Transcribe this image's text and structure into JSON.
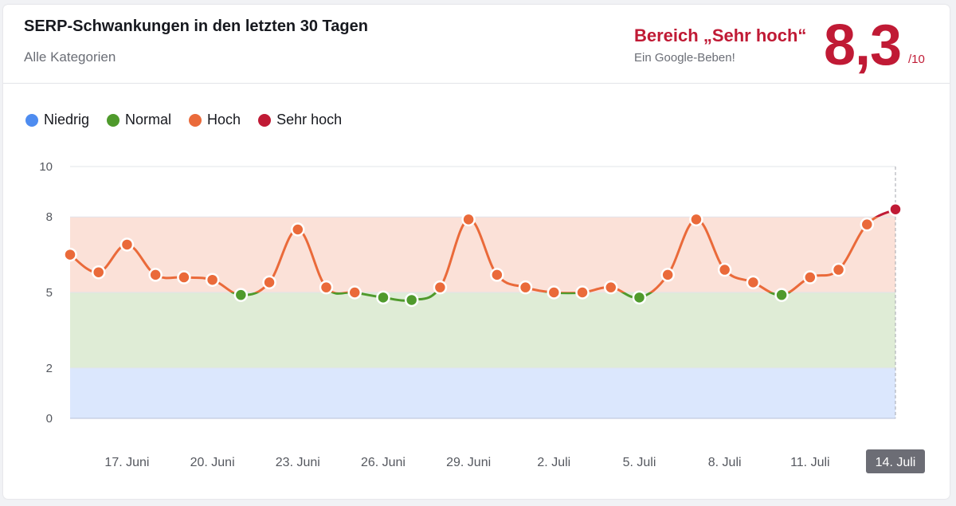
{
  "header": {
    "title": "SERP-Schwankungen in den letzten 30 Tagen",
    "subtitle": "Alle Kategorien",
    "range_label": "Bereich „Sehr hoch“",
    "range_sub": "Ein Google-Beben!",
    "score": "8,3",
    "score_max": "/10"
  },
  "legend": [
    {
      "label": "Niedrig",
      "color": "#4e8cf0"
    },
    {
      "label": "Normal",
      "color": "#4f9a2c"
    },
    {
      "label": "Hoch",
      "color": "#ea6a3a"
    },
    {
      "label": "Sehr hoch",
      "color": "#c01a35"
    }
  ],
  "chart_data": {
    "type": "line",
    "ylim": [
      0,
      10
    ],
    "yticks": [
      0,
      2,
      5,
      8,
      10
    ],
    "bands": [
      {
        "name": "Niedrig",
        "from": 0,
        "to": 2,
        "color": "#dbe7fd"
      },
      {
        "name": "Normal",
        "from": 2,
        "to": 5,
        "color": "#dfecd6"
      },
      {
        "name": "Hoch",
        "from": 5,
        "to": 8,
        "color": "#fbe1d8"
      }
    ],
    "xtick_labels": [
      "17. Juni",
      "20. Juni",
      "23. Juni",
      "26. Juni",
      "29. Juni",
      "2. Juli",
      "5. Juli",
      "8. Juli",
      "11. Juli",
      "14. Juli"
    ],
    "xtick_days": [
      2,
      5,
      8,
      11,
      14,
      17,
      20,
      23,
      26,
      29
    ],
    "highlighted_label": "14. Juli",
    "x_start": "15. Juni",
    "x_end": "14. Juli",
    "values": [
      6.5,
      5.8,
      6.9,
      5.7,
      5.6,
      5.5,
      4.9,
      5.4,
      7.5,
      5.2,
      5.0,
      4.8,
      4.7,
      5.2,
      7.9,
      5.7,
      5.2,
      5.0,
      5.0,
      5.2,
      4.8,
      5.7,
      7.9,
      5.9,
      5.4,
      4.9,
      5.6,
      5.9,
      7.7,
      8.3
    ]
  }
}
